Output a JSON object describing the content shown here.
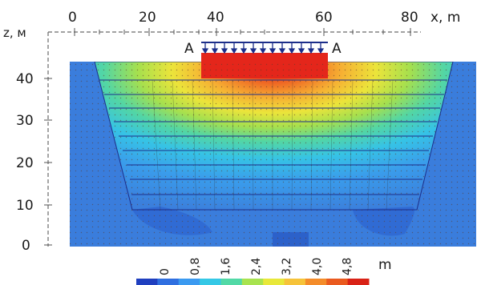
{
  "axes": {
    "x_label": "x, m",
    "z_label": "z, м",
    "x_ticks": [
      "0",
      "20",
      "40",
      "60",
      "80"
    ],
    "z_ticks": [
      "40",
      "30",
      "20",
      "10",
      "0"
    ]
  },
  "load": {
    "label_left": "A",
    "label_right": "A"
  },
  "colorbar": {
    "unit": "m",
    "ticks": [
      "0",
      "0,8",
      "1,6",
      "2,4",
      "3,2",
      "4,0",
      "4,8"
    ],
    "colors": [
      "#1f3fbf",
      "#2f6fe0",
      "#3b9af0",
      "#35c8e6",
      "#52d9a6",
      "#a8e34f",
      "#e8e83a",
      "#f6c33a",
      "#f48c2a",
      "#ea5a1f",
      "#d92216"
    ]
  },
  "colors": {
    "background_field": "#3a7ddc",
    "peak": "#e8301c",
    "mesh": "#2a2a2a",
    "outline": "#1c2e8a"
  }
}
